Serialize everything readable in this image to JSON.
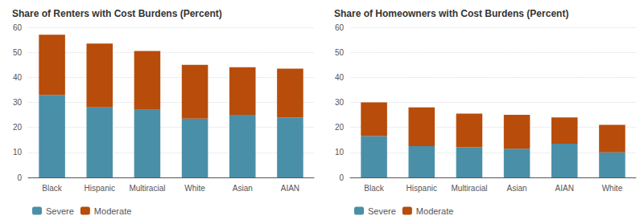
{
  "chart_data": [
    {
      "type": "bar",
      "title": "Share of Renters with Cost Burdens (Percent)",
      "categories": [
        "Black",
        "Hispanic",
        "Multiracial",
        "White",
        "Asian",
        "AIAN"
      ],
      "series": [
        {
          "name": "Severe",
          "color": "#4a8fa8",
          "values": [
            33,
            28,
            27,
            23.5,
            25,
            24
          ]
        },
        {
          "name": "Moderate",
          "color": "#b84c0a",
          "values": [
            24,
            25.5,
            23.5,
            21.5,
            19,
            19.5
          ]
        }
      ],
      "stacked": true,
      "ylim": [
        0,
        60
      ],
      "yticks": [
        0,
        10,
        20,
        30,
        40,
        50,
        60
      ],
      "grid": true,
      "legend": "lower left"
    },
    {
      "type": "bar",
      "title": "Share of Homeowners with Cost Burdens (Percent)",
      "categories": [
        "Black",
        "Hispanic",
        "Multiracial",
        "Asian",
        "AIAN",
        "White"
      ],
      "series": [
        {
          "name": "Severe",
          "color": "#4a8fa8",
          "values": [
            16.5,
            12.5,
            12,
            11.5,
            13.5,
            10
          ]
        },
        {
          "name": "Moderate",
          "color": "#b84c0a",
          "values": [
            13.5,
            15.5,
            13.5,
            13.5,
            10.5,
            11
          ]
        }
      ],
      "stacked": true,
      "ylim": [
        0,
        60
      ],
      "yticks": [
        0,
        10,
        20,
        30,
        40,
        50,
        60
      ],
      "grid": true,
      "legend": "lower left"
    }
  ]
}
